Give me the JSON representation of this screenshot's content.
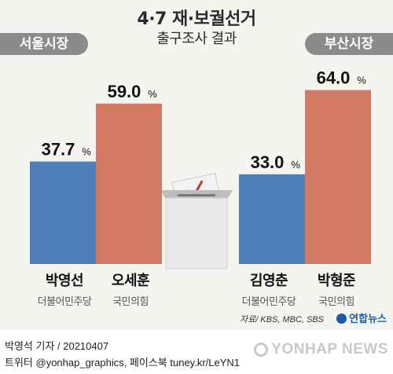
{
  "header": {
    "title": "4·7 재·보궐선거",
    "subtitle": "출구조사 결과",
    "left_region": "서울시장",
    "right_region": "부산시장"
  },
  "chart_data": {
    "type": "bar",
    "unit": "%",
    "ylim": [
      0,
      70
    ],
    "groups": [
      {
        "name": "서울시장",
        "bars": [
          {
            "candidate": "박영선",
            "party": "더불어민주당",
            "value": 37.7,
            "color": "#4f7db8"
          },
          {
            "candidate": "오세훈",
            "party": "국민의힘",
            "value": 59.0,
            "color": "#d27a63"
          }
        ]
      },
      {
        "name": "부산시장",
        "bars": [
          {
            "candidate": "김영춘",
            "party": "더불어민주당",
            "value": 33.0,
            "color": "#4f7db8"
          },
          {
            "candidate": "박형준",
            "party": "국민의힘",
            "value": 64.0,
            "color": "#d27a63"
          }
        ]
      }
    ]
  },
  "candidates": [
    {
      "name": "박영선",
      "party": "더불어민주당"
    },
    {
      "name": "오세훈",
      "party": "국민의힘"
    },
    {
      "name": "김영춘",
      "party": "더불어민주당"
    },
    {
      "name": "박형준",
      "party": "국민의힘"
    }
  ],
  "source": "자료/ KBS, MBC, SBS",
  "brand_small": "연합뉴스",
  "credit": "박영석 기자 / 20210407",
  "social": "트위터 @yonhap_graphics, 페이스북 tuney.kr/LeYN1",
  "watermark": "YONHAP NEWS",
  "icons": {
    "ballot_box": "ballot-box-icon",
    "checkmark": "vote-check-icon"
  }
}
